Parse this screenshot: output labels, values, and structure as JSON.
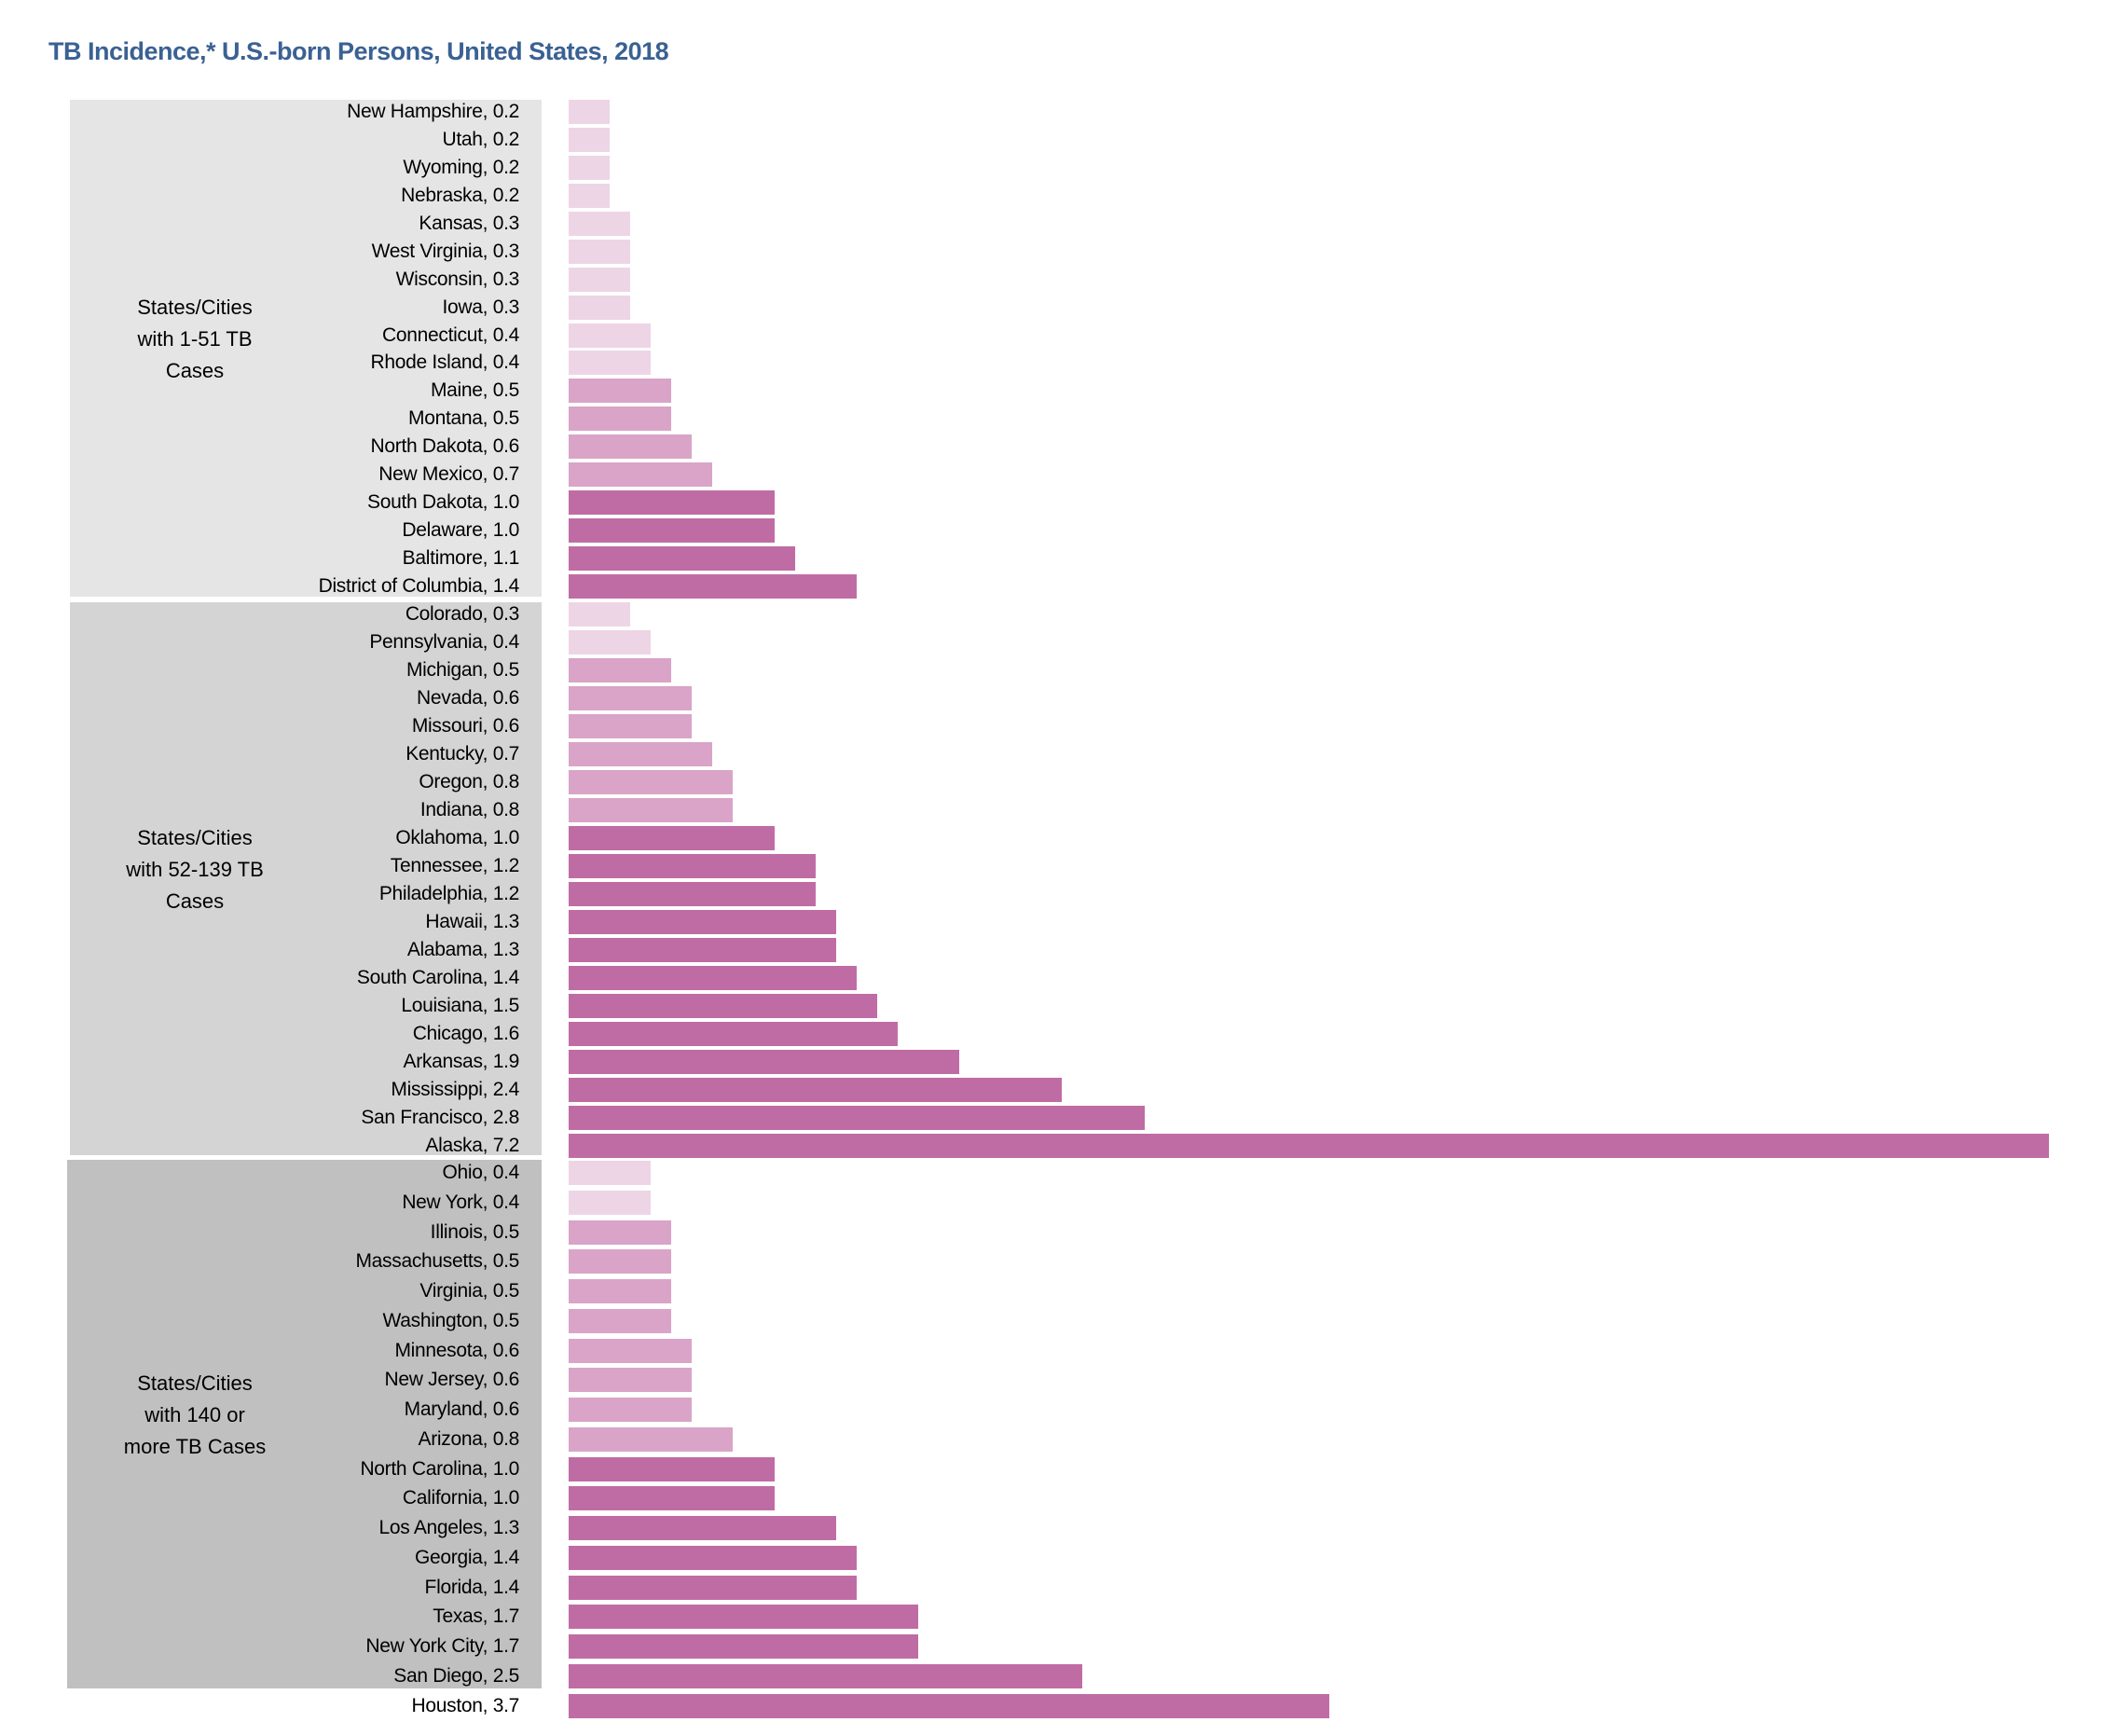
{
  "chart_data": {
    "type": "bar",
    "orientation": "horizontal",
    "title": "TB Incidence,* U.S.-born Persons, United States, 2018",
    "xlabel": "",
    "ylabel": "",
    "xlim": [
      0,
      7.2
    ],
    "grid": false,
    "legend": "none",
    "color_tiers": [
      {
        "range": "< 0.5",
        "color": "#EDD5E6"
      },
      {
        "range": "0.5 - 0.9",
        "color": "#D9A4C7"
      },
      {
        "range": ">= 1.0",
        "color": "#C06CA4"
      }
    ],
    "groups": [
      {
        "label_lines": [
          "States/Cities",
          "with 1-51 TB",
          "Cases"
        ],
        "panel_color": "#E5E5E5",
        "categories": [
          "New Hampshire",
          "Utah",
          "Wyoming",
          "Nebraska",
          "Kansas",
          "West Virginia",
          "Wisconsin",
          "Iowa",
          "Connecticut",
          "Rhode Island",
          "Maine",
          "Montana",
          "North Dakota",
          "New Mexico",
          "South Dakota",
          "Delaware",
          "Baltimore",
          "District of Columbia"
        ],
        "values": [
          0.2,
          0.2,
          0.2,
          0.2,
          0.3,
          0.3,
          0.3,
          0.3,
          0.4,
          0.4,
          0.5,
          0.5,
          0.6,
          0.7,
          1.0,
          1.0,
          1.1,
          1.4
        ],
        "labels": [
          "New Hampshire, 0.2",
          "Utah, 0.2",
          "Wyoming, 0.2",
          "Nebraska, 0.2",
          "Kansas, 0.3",
          "West Virginia, 0.3",
          "Wisconsin, 0.3",
          "Iowa, 0.3",
          "Connecticut, 0.4",
          "Rhode Island, 0.4",
          "Maine, 0.5",
          "Montana, 0.5",
          "North Dakota, 0.6",
          "New Mexico, 0.7",
          "South Dakota, 1.0",
          "Delaware, 1.0",
          "Baltimore, 1.1",
          "District of Columbia, 1.4"
        ]
      },
      {
        "label_lines": [
          "States/Cities",
          "with 52-139 TB",
          "Cases"
        ],
        "panel_color": "#D4D4D4",
        "categories": [
          "Colorado",
          "Pennsylvania",
          "Michigan",
          "Nevada",
          "Missouri",
          "Kentucky",
          "Oregon",
          "Indiana",
          "Oklahoma",
          "Tennessee",
          "Philadelphia",
          "Hawaii",
          "Alabama",
          "South Carolina",
          "Louisiana",
          "Chicago",
          "Arkansas",
          "Mississippi",
          "San Francisco",
          "Alaska"
        ],
        "values": [
          0.3,
          0.4,
          0.5,
          0.6,
          0.6,
          0.7,
          0.8,
          0.8,
          1.0,
          1.2,
          1.2,
          1.3,
          1.3,
          1.4,
          1.5,
          1.6,
          1.9,
          2.4,
          2.8,
          7.2
        ],
        "labels": [
          "Colorado, 0.3",
          "Pennsylvania, 0.4",
          "Michigan, 0.5",
          "Nevada, 0.6",
          "Missouri, 0.6",
          "Kentucky, 0.7",
          "Oregon, 0.8",
          "Indiana, 0.8",
          "Oklahoma, 1.0",
          "Tennessee, 1.2",
          "Philadelphia, 1.2",
          "Hawaii, 1.3",
          "Alabama, 1.3",
          "South Carolina, 1.4",
          "Louisiana, 1.5",
          "Chicago, 1.6",
          "Arkansas, 1.9",
          "Mississippi, 2.4",
          "San Francisco, 2.8",
          "Alaska, 7.2"
        ]
      },
      {
        "label_lines": [
          "States/Cities",
          "with 140 or",
          "more TB Cases"
        ],
        "panel_color": "#C0C0C0",
        "categories": [
          "Ohio",
          "New York",
          "Illinois",
          "Massachusetts",
          "Virginia",
          "Washington",
          "Minnesota",
          "New Jersey",
          "Maryland",
          "Arizona",
          "North Carolina",
          "California",
          "Los Angeles",
          "Georgia",
          "Florida",
          "Texas",
          "New York City",
          "San Diego",
          "Houston"
        ],
        "values": [
          0.4,
          0.4,
          0.5,
          0.5,
          0.5,
          0.5,
          0.6,
          0.6,
          0.6,
          0.8,
          1.0,
          1.0,
          1.3,
          1.4,
          1.4,
          1.7,
          1.7,
          2.5,
          3.7
        ],
        "labels": [
          "Ohio, 0.4",
          "New York, 0.4",
          "Illinois, 0.5",
          "Massachusetts, 0.5",
          "Virginia, 0.5",
          "Washington, 0.5",
          "Minnesota, 0.6",
          "New Jersey, 0.6",
          "Maryland, 0.6",
          "Arizona, 0.8",
          "North Carolina, 1.0",
          "California, 1.0",
          "Los Angeles, 1.3",
          "Georgia, 1.4",
          "Florida, 1.4",
          "Texas, 1.7",
          "New York City, 1.7",
          "San Diego, 2.5",
          "Houston, 3.7"
        ]
      }
    ]
  }
}
